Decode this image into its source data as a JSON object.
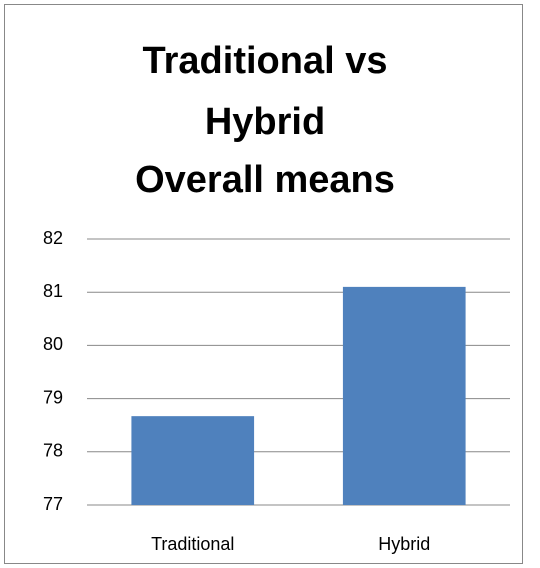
{
  "chart_data": {
    "type": "bar",
    "title": [
      "Traditional vs",
      "Hybrid",
      "Overall means"
    ],
    "categories": [
      "Traditional",
      "Hybrid"
    ],
    "values": [
      78.67,
      81.1
    ],
    "color": "#4f81bd",
    "ylim": [
      77,
      82
    ],
    "yticks": [
      77,
      78,
      79,
      80,
      81,
      82
    ],
    "grid": true
  }
}
